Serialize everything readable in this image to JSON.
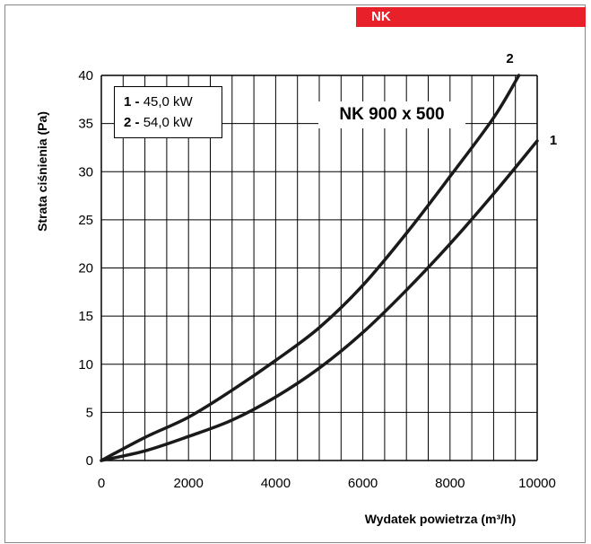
{
  "header": {
    "tag": "NK"
  },
  "chart_data": {
    "type": "line",
    "title": "NK 900 x 500",
    "xlabel": "Wydatek powietrza (m³/h)",
    "ylabel": "Strata ciśnienia (Pa)",
    "xlim": [
      0,
      10000
    ],
    "ylim": [
      0,
      40
    ],
    "x_ticks": [
      "0",
      "2000",
      "4000",
      "6000",
      "8000",
      "10000"
    ],
    "y_ticks": [
      "0",
      "5",
      "10",
      "15",
      "20",
      "25",
      "30",
      "35",
      "40"
    ],
    "grid": true,
    "legend": {
      "position": "top-left",
      "entries": [
        {
          "id": "1",
          "text": "45,0 kW"
        },
        {
          "id": "2",
          "text": "54,0 kW"
        }
      ]
    },
    "series": [
      {
        "name": "1",
        "x": [
          0,
          1000,
          2000,
          3000,
          4000,
          5000,
          6000,
          7000,
          8000,
          9000,
          10000
        ],
        "y": [
          0,
          1.0,
          2.5,
          4.2,
          6.6,
          9.6,
          13.3,
          17.7,
          22.5,
          27.7,
          33.2
        ]
      },
      {
        "name": "2",
        "x": [
          0,
          1000,
          2000,
          3000,
          4000,
          5000,
          6000,
          7000,
          8000,
          9000,
          9580
        ],
        "y": [
          0,
          2.4,
          4.5,
          7.3,
          10.4,
          13.8,
          18.2,
          23.6,
          29.5,
          35.6,
          40
        ]
      }
    ]
  }
}
